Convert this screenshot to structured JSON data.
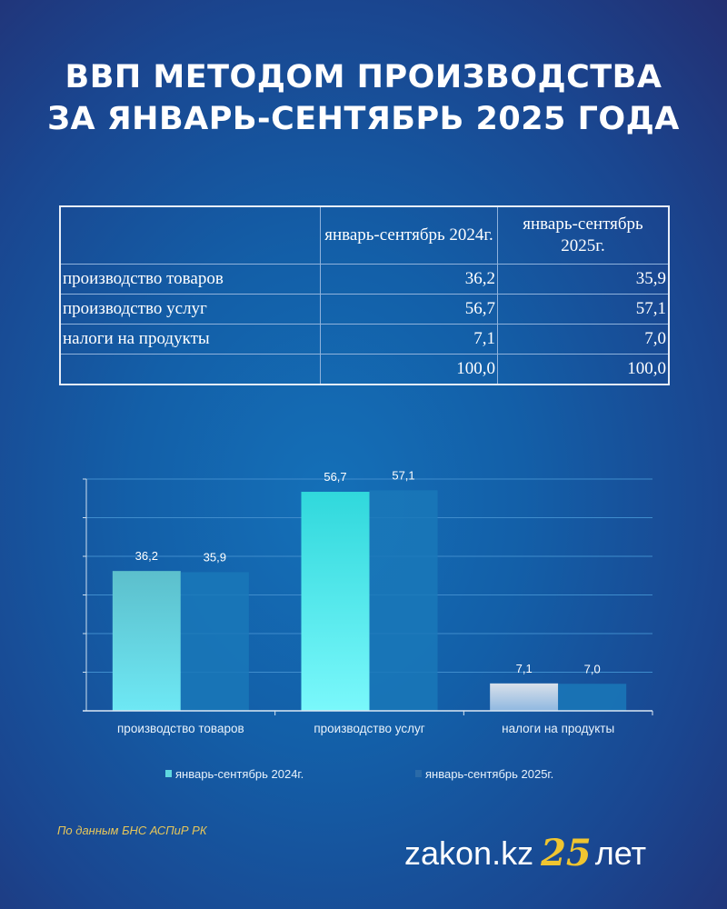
{
  "title": {
    "line1": "ВВП МЕТОДОМ ПРОИЗВОДСТВА",
    "line2": "ЗА ЯНВАРЬ-СЕНТЯБРЬ 2025 ГОДА"
  },
  "table": {
    "headers": [
      "",
      "январь-сентябрь 2024г.",
      "январь-сентябрь 2025г."
    ],
    "rows": [
      [
        "производство товаров",
        "36,2",
        "35,9"
      ],
      [
        "производство услуг",
        "56,7",
        "57,1"
      ],
      [
        "налоги на продукты",
        "7,1",
        "7,0"
      ],
      [
        "",
        "100,0",
        "100,0"
      ]
    ]
  },
  "chart_data": {
    "type": "bar",
    "categories": [
      "производство товаров",
      "производство услуг",
      "налоги на продукты"
    ],
    "series": [
      {
        "name": "январь-сентябрь 2024г.",
        "values": [
          36.2,
          56.7,
          7.1
        ],
        "labels": [
          "36,2",
          "56,7",
          "7,1"
        ],
        "color": "#5ff0f5"
      },
      {
        "name": "январь-сентябрь 2025г.",
        "values": [
          35.9,
          57.1,
          7.0
        ],
        "labels": [
          "35,9",
          "57,1",
          "7,0"
        ],
        "color": "#1a78b8"
      }
    ],
    "ylim": [
      0,
      60
    ],
    "ystep": 10,
    "grid": true,
    "legend": "bottom",
    "title": "",
    "xlabel": "",
    "ylabel": ""
  },
  "footer": {
    "source": "По данным БНС АСПиР РК",
    "logo_text": "zakon.kz",
    "logo_number": "25",
    "logo_suffix": "лет"
  }
}
